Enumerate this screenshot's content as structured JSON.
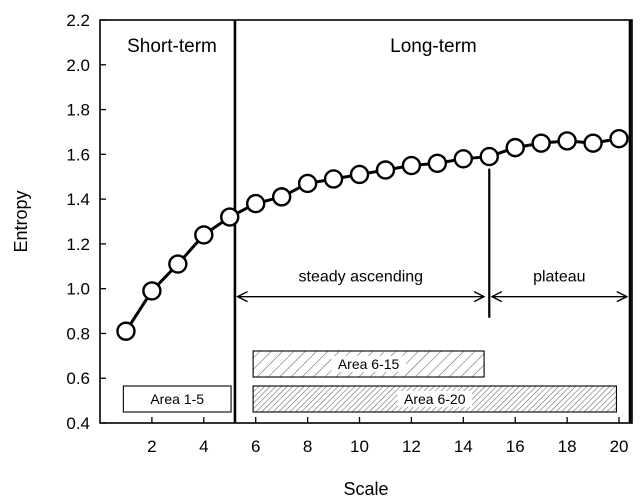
{
  "chart_data": {
    "type": "line",
    "xlabel": "Scale",
    "ylabel": "Entropy",
    "xlim": [
      0,
      20.5
    ],
    "ylim": [
      0.4,
      2.2
    ],
    "xticks": [
      2,
      4,
      6,
      8,
      10,
      12,
      14,
      16,
      18,
      20
    ],
    "yticks": [
      "0.4",
      "0.6",
      "0.8",
      "1.0",
      "1.2",
      "1.4",
      "1.6",
      "1.8",
      "2.0",
      "2.2"
    ],
    "grid": false,
    "series": [
      {
        "x": [
          1,
          2,
          3,
          4,
          5,
          6,
          7,
          8,
          9,
          10,
          11,
          12,
          13,
          14,
          15,
          16,
          17,
          18,
          19,
          20
        ],
        "values": [
          0.81,
          0.99,
          1.11,
          1.24,
          1.32,
          1.38,
          1.41,
          1.47,
          1.49,
          1.51,
          1.53,
          1.55,
          1.56,
          1.58,
          1.59,
          1.63,
          1.65,
          1.66,
          1.65,
          1.67
        ]
      }
    ],
    "color": "#000000",
    "regions": {
      "short_term": {
        "label": "Short-term",
        "x_range": [
          0,
          5.2
        ]
      },
      "long_term": {
        "label": "Long-term",
        "x_range": [
          5.2,
          20.5
        ]
      }
    },
    "annotations": [
      {
        "label": "steady ascending",
        "x_range": [
          5.3,
          14.8
        ],
        "y": 1.0
      },
      {
        "label": "plateau",
        "x_range": [
          15.1,
          20.3
        ],
        "y": 1.0
      }
    ],
    "areas": [
      {
        "label": "Area 1-5",
        "x_range": [
          1,
          5
        ],
        "hatch": "none"
      },
      {
        "label": "Area 6-15",
        "x_range": [
          6,
          15
        ],
        "hatch": "diagonal-sparse"
      },
      {
        "label": "Area 6-20",
        "x_range": [
          6,
          20
        ],
        "hatch": "diagonal-dense"
      }
    ]
  }
}
